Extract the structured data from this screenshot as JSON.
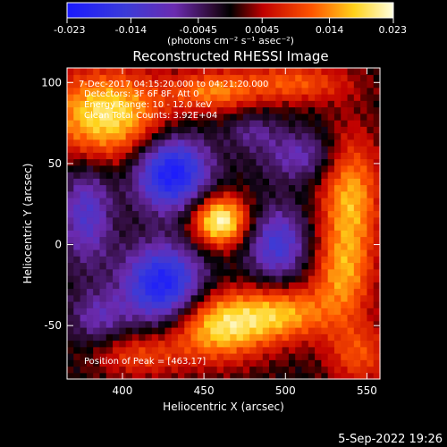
{
  "chart_data": {
    "type": "heatmap",
    "title": "Reconstructed RHESSI Image",
    "xlabel": "Heliocentric X (arcsec)",
    "ylabel": "Heliocentric Y (arcsec)",
    "xlim": [
      366,
      558
    ],
    "ylim": [
      -83,
      109
    ],
    "xticks": [
      400,
      450,
      500,
      550
    ],
    "yticks": [
      -50,
      0,
      50,
      100
    ],
    "colorbar": {
      "min": -0.023,
      "max": 0.023,
      "ticks": [
        "-0.023",
        "-0.014",
        "-0.0045",
        "0.0045",
        "0.014",
        "0.023"
      ],
      "unit_label": "(photons cm⁻² s⁻¹ asec⁻²)",
      "colormap": "blue-purple-black-red-orange-yellow-white"
    },
    "annotations": [
      "7-Dec-2017 04:15:20.000 to 04:21:20.000",
      "Detectors: 3F 6F 8F, Att 0",
      "Energy Range: 10 - 12.0 keV",
      "Clean   Total Counts: 3.92E+04"
    ],
    "peak_label": "Position of Peak = [463,17]",
    "sources": [
      {
        "x": 460,
        "y": 15,
        "amp": 0.023,
        "sx": 12,
        "sy": 11
      },
      {
        "x": 390,
        "y": 80,
        "amp": 0.02,
        "sx": 26,
        "sy": 20
      },
      {
        "x": 455,
        "y": 95,
        "amp": 0.012,
        "sx": 18,
        "sy": 9
      },
      {
        "x": 505,
        "y": 100,
        "amp": 0.011,
        "sx": 25,
        "sy": 9
      },
      {
        "x": 460,
        "y": -50,
        "amp": 0.019,
        "sx": 22,
        "sy": 15
      },
      {
        "x": 500,
        "y": -42,
        "amp": 0.014,
        "sx": 20,
        "sy": 12
      },
      {
        "x": 540,
        "y": 30,
        "amp": 0.016,
        "sx": 13,
        "sy": 28
      },
      {
        "x": 535,
        "y": -20,
        "amp": 0.012,
        "sx": 13,
        "sy": 20
      },
      {
        "x": 545,
        "y": -68,
        "amp": 0.01,
        "sx": 14,
        "sy": 14
      },
      {
        "x": 410,
        "y": -68,
        "amp": 0.009,
        "sx": 20,
        "sy": 10
      },
      {
        "x": 430,
        "y": 45,
        "amp": -0.023,
        "sx": 16,
        "sy": 16
      },
      {
        "x": 425,
        "y": -25,
        "amp": -0.022,
        "sx": 17,
        "sy": 17
      },
      {
        "x": 495,
        "y": 0,
        "amp": -0.014,
        "sx": 13,
        "sy": 16
      },
      {
        "x": 378,
        "y": 20,
        "amp": -0.012,
        "sx": 11,
        "sy": 22
      },
      {
        "x": 510,
        "y": 55,
        "amp": -0.009,
        "sx": 17,
        "sy": 11
      },
      {
        "x": 385,
        "y": -45,
        "amp": -0.008,
        "sx": 12,
        "sy": 12
      },
      {
        "x": 480,
        "y": 70,
        "amp": -0.006,
        "sx": 11,
        "sy": 8
      }
    ]
  },
  "footer": {
    "timestamp": "5-Sep-2022 19:26"
  }
}
